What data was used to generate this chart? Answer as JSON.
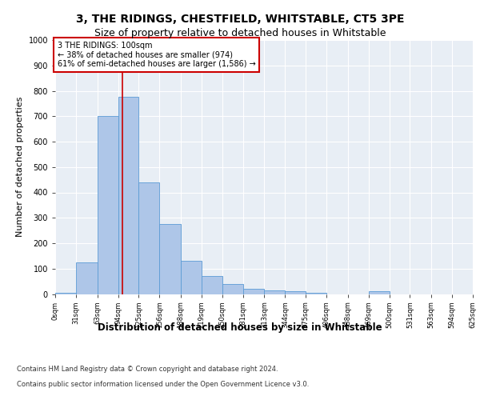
{
  "title1": "3, THE RIDINGS, CHESTFIELD, WHITSTABLE, CT5 3PE",
  "title2": "Size of property relative to detached houses in Whitstable",
  "xlabel": "Distribution of detached houses by size in Whitstable",
  "ylabel": "Number of detached properties",
  "footer1": "Contains HM Land Registry data © Crown copyright and database right 2024.",
  "footer2": "Contains public sector information licensed under the Open Government Licence v3.0.",
  "annotation_line1": "3 THE RIDINGS: 100sqm",
  "annotation_line2": "← 38% of detached houses are smaller (974)",
  "annotation_line3": "61% of semi-detached houses are larger (1,586) →",
  "property_size": 100,
  "bin_edges": [
    0,
    31,
    63,
    94,
    125,
    156,
    188,
    219,
    250,
    281,
    313,
    344,
    375,
    406,
    438,
    469,
    500,
    531,
    563,
    594,
    625
  ],
  "bar_heights": [
    5,
    125,
    700,
    775,
    440,
    275,
    130,
    70,
    40,
    22,
    15,
    10,
    5,
    0,
    0,
    10,
    0,
    0,
    0,
    0
  ],
  "bar_color": "#aec6e8",
  "bar_edge_color": "#5b9bd5",
  "vline_color": "#cc0000",
  "vline_x": 100,
  "annotation_box_color": "#ffffff",
  "annotation_box_edge_color": "#cc0000",
  "ylim": [
    0,
    1000
  ],
  "xlim": [
    0,
    625
  ],
  "bg_color": "#e8eef5",
  "grid_color": "#ffffff",
  "title1_fontsize": 10,
  "title2_fontsize": 9,
  "xlabel_fontsize": 8.5,
  "ylabel_fontsize": 8,
  "annotation_fontsize": 7,
  "tick_fontsize": 6,
  "footer_fontsize": 6
}
